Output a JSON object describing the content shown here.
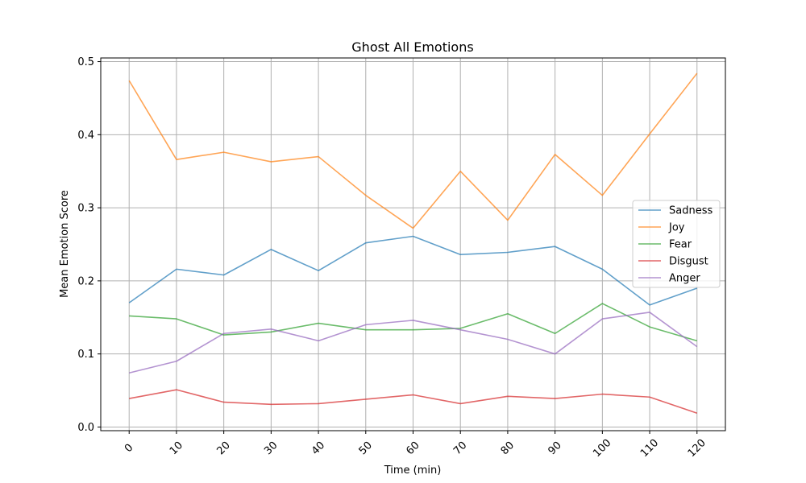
{
  "chart_data": {
    "type": "line",
    "title": "Ghost All Emotions",
    "xlabel": "Time (min)",
    "ylabel": "Mean Emotion Score",
    "x": [
      0,
      10,
      20,
      30,
      40,
      50,
      60,
      70,
      80,
      90,
      100,
      110,
      120
    ],
    "xticks": [
      "0",
      "10",
      "20",
      "30",
      "40",
      "50",
      "60",
      "70",
      "80",
      "90",
      "100",
      "110",
      "120"
    ],
    "yticks": [
      "0.0",
      "0.1",
      "0.2",
      "0.3",
      "0.4",
      "0.5"
    ],
    "ylim": [
      -0.005,
      0.505
    ],
    "grid": true,
    "legend_position": "center-right",
    "series": [
      {
        "name": "Sadness",
        "color": "#1f77b4",
        "values": [
          0.17,
          0.216,
          0.208,
          0.243,
          0.214,
          0.252,
          0.261,
          0.236,
          0.239,
          0.247,
          0.216,
          0.167,
          0.19
        ]
      },
      {
        "name": "Joy",
        "color": "#ff7f0e",
        "values": [
          0.474,
          0.366,
          0.376,
          0.363,
          0.37,
          0.317,
          0.272,
          0.35,
          0.283,
          0.373,
          0.317,
          0.401,
          0.484
        ]
      },
      {
        "name": "Fear",
        "color": "#2ca02c",
        "values": [
          0.152,
          0.148,
          0.126,
          0.13,
          0.142,
          0.133,
          0.133,
          0.135,
          0.155,
          0.128,
          0.169,
          0.137,
          0.118
        ]
      },
      {
        "name": "Disgust",
        "color": "#d62728",
        "values": [
          0.039,
          0.051,
          0.034,
          0.031,
          0.032,
          0.038,
          0.044,
          0.032,
          0.042,
          0.039,
          0.045,
          0.041,
          0.019
        ]
      },
      {
        "name": "Anger",
        "color": "#9467bd",
        "values": [
          0.074,
          0.09,
          0.128,
          0.134,
          0.118,
          0.14,
          0.146,
          0.133,
          0.12,
          0.1,
          0.148,
          0.157,
          0.11
        ]
      }
    ]
  }
}
